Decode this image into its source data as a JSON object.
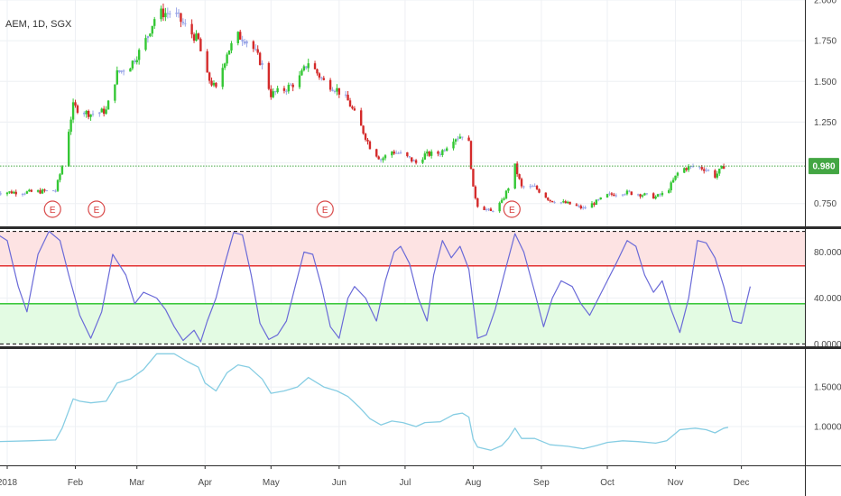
{
  "symbol": "AEM, 1D, SGX",
  "colors": {
    "up": "#34c734",
    "down": "#d42a2a",
    "neutral": "#9aa6e8",
    "osc_line": "#6a6ad8",
    "osc_overbought_zone": "#fde3e3",
    "osc_oversold_zone": "#e3fbe3",
    "osc_upper_level": "#e02020",
    "osc_lower_level": "#20c020",
    "lower_line": "#86cde3",
    "price_marker": "#43a643",
    "event": "#d94a4a",
    "grid": "#eef0f4"
  },
  "current_price_label": "0.980",
  "events": [
    {
      "label": "E",
      "x": 20.6
    },
    {
      "label": "E",
      "x": 40.6
    },
    {
      "label": "E",
      "x": 144.6
    },
    {
      "label": "E",
      "x": 229.6
    }
  ],
  "chart_data": [
    {
      "type": "candlestick",
      "name": "price",
      "y_ticks": [
        "2.000",
        "1.750",
        "1.500",
        "1.250",
        "0.750"
      ],
      "ylim": [
        0.61,
        2.0
      ],
      "current_price": 0.98,
      "x_ticks": [
        {
          "label": "2018",
          "day": 0
        },
        {
          "label": "Feb",
          "day": 31
        },
        {
          "label": "Mar",
          "day": 59
        },
        {
          "label": "Apr",
          "day": 90
        },
        {
          "label": "May",
          "day": 120
        },
        {
          "label": "Jun",
          "day": 151
        },
        {
          "label": "Jul",
          "day": 181
        },
        {
          "label": "Aug",
          "day": 212
        },
        {
          "label": "Sep",
          "day": 243
        },
        {
          "label": "Oct",
          "day": 273
        },
        {
          "label": "Nov",
          "day": 304
        },
        {
          "label": "Dec",
          "day": 334
        }
      ],
      "close_path": [
        [
          -5,
          0.82
        ],
        [
          10,
          0.82
        ],
        [
          22,
          0.83
        ],
        [
          25,
          0.98
        ],
        [
          30,
          1.35
        ],
        [
          33,
          1.32
        ],
        [
          38,
          1.3
        ],
        [
          45,
          1.32
        ],
        [
          50,
          1.55
        ],
        [
          56,
          1.6
        ],
        [
          62,
          1.72
        ],
        [
          68,
          1.92
        ],
        [
          76,
          1.92
        ],
        [
          82,
          1.82
        ],
        [
          87,
          1.75
        ],
        [
          90,
          1.55
        ],
        [
          95,
          1.45
        ],
        [
          100,
          1.68
        ],
        [
          105,
          1.78
        ],
        [
          110,
          1.75
        ],
        [
          116,
          1.6
        ],
        [
          120,
          1.42
        ],
        [
          126,
          1.45
        ],
        [
          132,
          1.5
        ],
        [
          137,
          1.62
        ],
        [
          144,
          1.5
        ],
        [
          150,
          1.45
        ],
        [
          155,
          1.38
        ],
        [
          160,
          1.25
        ],
        [
          165,
          1.1
        ],
        [
          170,
          1.02
        ],
        [
          175,
          1.07
        ],
        [
          180,
          1.05
        ],
        [
          186,
          1.0
        ],
        [
          190,
          1.05
        ],
        [
          197,
          1.06
        ],
        [
          203,
          1.15
        ],
        [
          207,
          1.17
        ],
        [
          210,
          1.12
        ],
        [
          212,
          0.84
        ],
        [
          214,
          0.74
        ],
        [
          220,
          0.7
        ],
        [
          225,
          0.76
        ],
        [
          228,
          0.85
        ],
        [
          231,
          0.98
        ],
        [
          234,
          0.85
        ],
        [
          240,
          0.85
        ],
        [
          247,
          0.77
        ],
        [
          255,
          0.75
        ],
        [
          262,
          0.72
        ],
        [
          268,
          0.76
        ],
        [
          273,
          0.8
        ],
        [
          280,
          0.82
        ],
        [
          287,
          0.81
        ],
        [
          295,
          0.79
        ],
        [
          300,
          0.82
        ],
        [
          306,
          0.96
        ],
        [
          313,
          0.98
        ],
        [
          318,
          0.96
        ],
        [
          322,
          0.92
        ],
        [
          326,
          0.98
        ],
        [
          328,
          0.99
        ]
      ]
    },
    {
      "type": "line",
      "name": "oscillator",
      "y_ticks": [
        "80.0000",
        "40.0000",
        "0.0000"
      ],
      "ylim": [
        -2,
        100
      ],
      "levels": {
        "extreme_high": 98,
        "upper": 68,
        "lower": 35,
        "extreme_low": 0
      },
      "points": [
        [
          -5,
          96
        ],
        [
          0,
          90
        ],
        [
          5,
          50
        ],
        [
          9,
          28
        ],
        [
          14,
          78
        ],
        [
          19,
          98
        ],
        [
          24,
          90
        ],
        [
          28,
          60
        ],
        [
          33,
          25
        ],
        [
          38,
          5
        ],
        [
          43,
          28
        ],
        [
          48,
          78
        ],
        [
          54,
          60
        ],
        [
          58,
          35
        ],
        [
          62,
          45
        ],
        [
          68,
          40
        ],
        [
          72,
          30
        ],
        [
          76,
          15
        ],
        [
          80,
          3
        ],
        [
          85,
          12
        ],
        [
          88,
          2
        ],
        [
          91,
          20
        ],
        [
          95,
          40
        ],
        [
          99,
          70
        ],
        [
          103,
          97
        ],
        [
          107,
          95
        ],
        [
          111,
          60
        ],
        [
          115,
          18
        ],
        [
          119,
          4
        ],
        [
          123,
          8
        ],
        [
          127,
          20
        ],
        [
          131,
          50
        ],
        [
          135,
          80
        ],
        [
          139,
          78
        ],
        [
          143,
          50
        ],
        [
          147,
          15
        ],
        [
          151,
          5
        ],
        [
          155,
          40
        ],
        [
          158,
          50
        ],
        [
          163,
          40
        ],
        [
          168,
          20
        ],
        [
          172,
          55
        ],
        [
          176,
          80
        ],
        [
          179,
          85
        ],
        [
          183,
          70
        ],
        [
          187,
          40
        ],
        [
          191,
          20
        ],
        [
          194,
          60
        ],
        [
          198,
          90
        ],
        [
          202,
          75
        ],
        [
          206,
          85
        ],
        [
          210,
          65
        ],
        [
          214,
          5
        ],
        [
          218,
          8
        ],
        [
          222,
          30
        ],
        [
          226,
          60
        ],
        [
          231,
          96
        ],
        [
          235,
          80
        ],
        [
          240,
          45
        ],
        [
          244,
          15
        ],
        [
          248,
          40
        ],
        [
          252,
          55
        ],
        [
          257,
          50
        ],
        [
          261,
          35
        ],
        [
          265,
          25
        ],
        [
          269,
          40
        ],
        [
          273,
          55
        ],
        [
          277,
          70
        ],
        [
          282,
          90
        ],
        [
          286,
          85
        ],
        [
          290,
          60
        ],
        [
          294,
          45
        ],
        [
          298,
          55
        ],
        [
          302,
          30
        ],
        [
          306,
          10
        ],
        [
          310,
          40
        ],
        [
          314,
          90
        ],
        [
          318,
          88
        ],
        [
          322,
          75
        ],
        [
          326,
          50
        ],
        [
          330,
          20
        ],
        [
          334,
          18
        ],
        [
          338,
          50
        ]
      ]
    },
    {
      "type": "line",
      "name": "lower_indicator",
      "y_ticks": [
        "1.5000",
        "1.0000"
      ],
      "ylim": [
        0.51,
        1.98
      ],
      "points": [
        [
          -5,
          0.81
        ],
        [
          10,
          0.82
        ],
        [
          22,
          0.83
        ],
        [
          25,
          0.98
        ],
        [
          30,
          1.35
        ],
        [
          33,
          1.32
        ],
        [
          38,
          1.3
        ],
        [
          45,
          1.32
        ],
        [
          50,
          1.55
        ],
        [
          56,
          1.6
        ],
        [
          62,
          1.72
        ],
        [
          68,
          1.92
        ],
        [
          76,
          1.92
        ],
        [
          82,
          1.82
        ],
        [
          87,
          1.75
        ],
        [
          90,
          1.55
        ],
        [
          95,
          1.45
        ],
        [
          100,
          1.68
        ],
        [
          105,
          1.78
        ],
        [
          110,
          1.75
        ],
        [
          116,
          1.6
        ],
        [
          120,
          1.42
        ],
        [
          126,
          1.45
        ],
        [
          132,
          1.5
        ],
        [
          137,
          1.62
        ],
        [
          144,
          1.5
        ],
        [
          150,
          1.45
        ],
        [
          155,
          1.38
        ],
        [
          160,
          1.25
        ],
        [
          165,
          1.1
        ],
        [
          170,
          1.02
        ],
        [
          175,
          1.07
        ],
        [
          180,
          1.05
        ],
        [
          186,
          1.0
        ],
        [
          190,
          1.05
        ],
        [
          197,
          1.06
        ],
        [
          203,
          1.15
        ],
        [
          207,
          1.17
        ],
        [
          210,
          1.12
        ],
        [
          212,
          0.84
        ],
        [
          214,
          0.74
        ],
        [
          220,
          0.7
        ],
        [
          225,
          0.76
        ],
        [
          228,
          0.85
        ],
        [
          231,
          0.98
        ],
        [
          234,
          0.85
        ],
        [
          240,
          0.85
        ],
        [
          247,
          0.77
        ],
        [
          255,
          0.75
        ],
        [
          262,
          0.72
        ],
        [
          268,
          0.76
        ],
        [
          273,
          0.8
        ],
        [
          280,
          0.82
        ],
        [
          287,
          0.81
        ],
        [
          295,
          0.79
        ],
        [
          300,
          0.82
        ],
        [
          306,
          0.96
        ],
        [
          313,
          0.98
        ],
        [
          318,
          0.96
        ],
        [
          322,
          0.92
        ],
        [
          326,
          0.98
        ],
        [
          328,
          0.99
        ]
      ]
    }
  ]
}
